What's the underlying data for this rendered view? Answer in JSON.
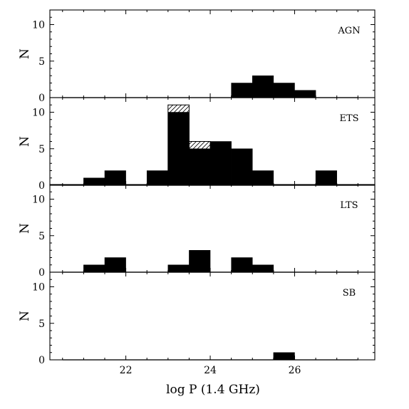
{
  "chart_data": {
    "type": "bar",
    "xlabel": "log P (1.4 GHz)",
    "ylabel": "N",
    "xlim": [
      20.2,
      27.9
    ],
    "ylim": [
      0,
      12
    ],
    "bin_width": 0.5,
    "x_ticks": [
      22,
      24,
      26
    ],
    "y_ticks": [
      0,
      5,
      10
    ],
    "colors": {
      "fill": "#000000",
      "hatch": "#000000"
    },
    "panels": [
      {
        "name": "AGN",
        "label": "AGN",
        "bins": [
          {
            "left": 24.5,
            "value": 2
          },
          {
            "left": 25.0,
            "value": 3
          },
          {
            "left": 25.5,
            "value": 2
          },
          {
            "left": 26.0,
            "value": 1
          }
        ],
        "hatched": []
      },
      {
        "name": "ETS",
        "label": "ETS",
        "bins": [
          {
            "left": 21.0,
            "value": 1
          },
          {
            "left": 21.5,
            "value": 2
          },
          {
            "left": 22.5,
            "value": 2
          },
          {
            "left": 23.0,
            "value": 10
          },
          {
            "left": 23.5,
            "value": 5
          },
          {
            "left": 24.0,
            "value": 6
          },
          {
            "left": 24.5,
            "value": 5
          },
          {
            "left": 25.0,
            "value": 2
          },
          {
            "left": 26.5,
            "value": 2
          }
        ],
        "hatched": [
          {
            "left": 23.0,
            "value": 11
          },
          {
            "left": 23.5,
            "value": 6
          }
        ]
      },
      {
        "name": "LTS",
        "label": "LTS",
        "bins": [
          {
            "left": 21.0,
            "value": 1
          },
          {
            "left": 21.5,
            "value": 2
          },
          {
            "left": 23.0,
            "value": 1
          },
          {
            "left": 23.5,
            "value": 3
          },
          {
            "left": 24.5,
            "value": 2
          },
          {
            "left": 25.0,
            "value": 1
          }
        ],
        "hatched": []
      },
      {
        "name": "SB",
        "label": "SB",
        "bins": [
          {
            "left": 25.5,
            "value": 1
          }
        ],
        "hatched": []
      }
    ]
  }
}
